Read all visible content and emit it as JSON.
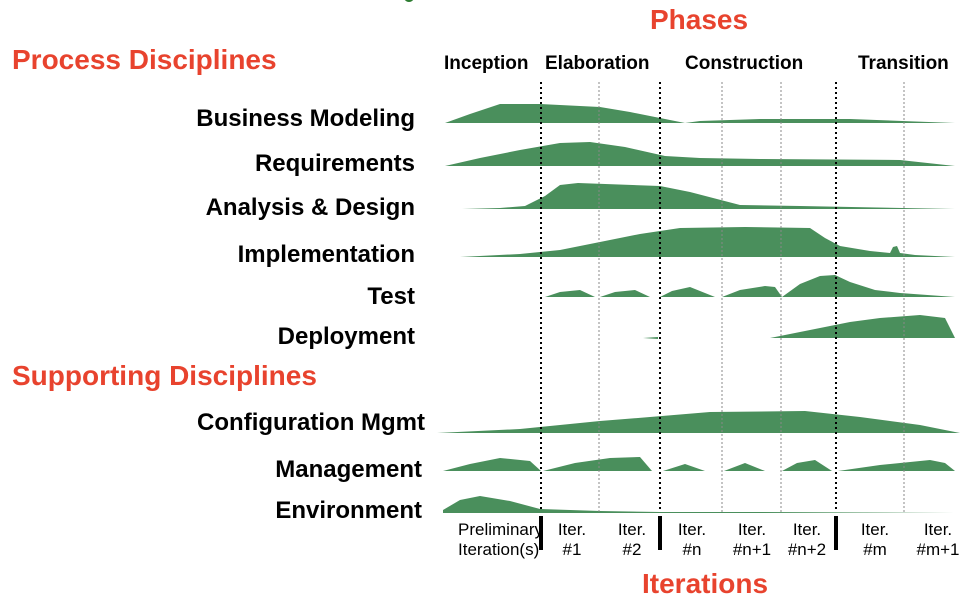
{
  "titles": {
    "phases": "Phases",
    "iterations": "Iterations",
    "process_disciplines": "Process Disciplines",
    "supporting_disciplines": "Supporting Disciplines"
  },
  "phases": [
    "Inception",
    "Elaboration",
    "Construction",
    "Transition"
  ],
  "disciplines": {
    "process": [
      "Business Modeling",
      "Requirements",
      "Analysis & Design",
      "Implementation",
      "Test",
      "Deployment"
    ],
    "supporting": [
      "Configuration Mgmt",
      "Management",
      "Environment"
    ]
  },
  "iterations": [
    [
      "Preliminary",
      "Iteration(s)"
    ],
    [
      "Iter.",
      "#1"
    ],
    [
      "Iter.",
      "#2"
    ],
    [
      "Iter.",
      "#n"
    ],
    [
      "Iter.",
      "#n+1"
    ],
    [
      "Iter.",
      "#n+2"
    ],
    [
      "Iter.",
      "#m"
    ],
    [
      "Iter.",
      "#m+1"
    ]
  ],
  "colors": {
    "accent_red": "#e8432e",
    "hump_green": "#4a8f5c",
    "text": "#000000"
  }
}
